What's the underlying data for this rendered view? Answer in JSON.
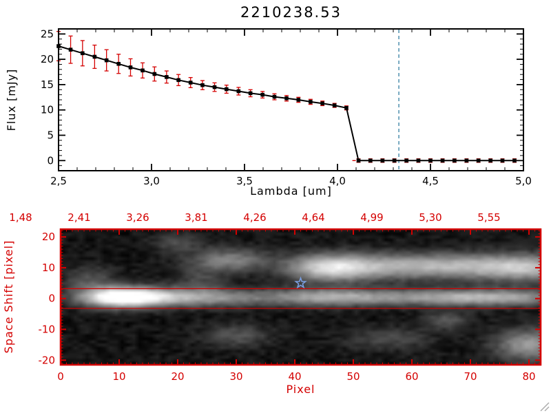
{
  "figure_title": "2210238.53",
  "chart_data": [
    {
      "type": "line",
      "title": "2210238.53",
      "xlabel": "Lambda [um]",
      "ylabel": "Flux [mJy]",
      "xlim": [
        2.5,
        5.0
      ],
      "ylim": [
        -2,
        26
      ],
      "x_ticks": [
        2.5,
        3.0,
        3.5,
        4.0,
        4.5,
        5.0
      ],
      "x_tick_labels": [
        "2,5",
        "3,0",
        "3,5",
        "4,0",
        "4,5",
        "5,0"
      ],
      "y_ticks": [
        0,
        5,
        10,
        15,
        20,
        25
      ],
      "y_tick_labels": [
        "0",
        "5",
        "10",
        "15",
        "20",
        "25"
      ],
      "line_color": "#000000",
      "error_color": "#d40000",
      "marker": "square",
      "x": [
        2.5,
        2.565,
        2.629,
        2.694,
        2.758,
        2.823,
        2.887,
        2.952,
        3.016,
        3.081,
        3.145,
        3.21,
        3.274,
        3.339,
        3.403,
        3.468,
        3.532,
        3.597,
        3.661,
        3.726,
        3.79,
        3.855,
        3.919,
        3.984,
        4.048,
        4.113,
        4.177,
        4.242,
        4.306,
        4.371,
        4.435,
        4.5,
        4.565,
        4.629,
        4.694,
        4.758,
        4.823,
        4.887,
        4.952
      ],
      "y": [
        22.6,
        21.9,
        21.2,
        20.5,
        19.8,
        19.1,
        18.4,
        17.8,
        17.1,
        16.5,
        15.9,
        15.4,
        14.9,
        14.5,
        14.1,
        13.7,
        13.3,
        13.0,
        12.6,
        12.3,
        12.0,
        11.6,
        11.3,
        10.9,
        10.4,
        0,
        0,
        0,
        0,
        0,
        0,
        0,
        0,
        0,
        0,
        0,
        0,
        0,
        0
      ],
      "yerr": [
        2.9,
        2.7,
        2.5,
        2.3,
        2.1,
        1.9,
        1.7,
        1.5,
        1.4,
        1.2,
        1.1,
        1.0,
        0.9,
        0.85,
        0.8,
        0.75,
        0.7,
        0.65,
        0.6,
        0.55,
        0.5,
        0.5,
        0.45,
        0.4,
        0.4,
        0.35,
        0.35,
        0.35,
        0.35,
        0.35,
        0.35,
        0.35,
        0.35,
        0.35,
        0.35,
        0.35,
        0.35,
        0.35,
        0.35
      ],
      "vline": {
        "x": 4.33,
        "color": "#4d8fae",
        "style": "dashed"
      },
      "zero_line": {
        "y": 0,
        "x_start": 4.08,
        "color": "#d40000",
        "style": "dashed"
      }
    },
    {
      "type": "heatmap",
      "xlabel": "Pixel",
      "ylabel": "Space Shift [pixel]",
      "axis_color": "#d40000",
      "xlim": [
        0,
        82
      ],
      "ylim": [
        -21.5,
        22.5
      ],
      "x_ticks": [
        0,
        10,
        20,
        30,
        40,
        50,
        60,
        70,
        80
      ],
      "x_tick_labels": [
        "0",
        "10",
        "20",
        "30",
        "40",
        "50",
        "60",
        "70",
        "80"
      ],
      "y_ticks": [
        -20,
        -10,
        0,
        10,
        20
      ],
      "y_tick_labels": [
        "-20",
        "-10",
        "0",
        "10",
        "20"
      ],
      "top_axis_tick_labels": [
        "1,48",
        "2,41",
        "3,26",
        "3,81",
        "4,26",
        "4,64",
        "4,99",
        "5,30",
        "5,55"
      ],
      "aperture_lines_y": [
        3.2,
        -3.2
      ],
      "star_marker": {
        "x": 41,
        "y": 5,
        "color": "#7b9fe0"
      },
      "background_level": 0.055,
      "noise_amplitude": 0.05,
      "noise_seed": 7,
      "blobs": [
        [
          10,
          0.5,
          4.5,
          2.2,
          1.1
        ],
        [
          17,
          0.5,
          5.0,
          2.0,
          0.5
        ],
        [
          28,
          0.3,
          6.0,
          1.9,
          0.38
        ],
        [
          45,
          0.5,
          7.0,
          1.9,
          0.5
        ],
        [
          62,
          0.4,
          10.0,
          1.8,
          0.42
        ],
        [
          76,
          0.4,
          8.0,
          1.8,
          0.45
        ],
        [
          46,
          10.0,
          5.0,
          3.0,
          0.7
        ],
        [
          57,
          10.5,
          8.0,
          2.8,
          0.45
        ],
        [
          70,
          10.5,
          8.0,
          2.8,
          0.42
        ],
        [
          80,
          10.0,
          6.0,
          3.0,
          0.5
        ],
        [
          29,
          12.5,
          4.5,
          2.5,
          0.4
        ],
        [
          20,
          18.0,
          3.0,
          2.0,
          0.2
        ],
        [
          5,
          6.0,
          3.0,
          3.0,
          0.22
        ],
        [
          24,
          5.0,
          3.0,
          4.0,
          0.18
        ],
        [
          30,
          -12.0,
          4.0,
          2.5,
          0.22
        ],
        [
          56,
          -13.0,
          5.0,
          2.5,
          0.18
        ],
        [
          66,
          -7.0,
          2.5,
          2.0,
          0.25
        ],
        [
          80,
          -15.0,
          4.0,
          3.5,
          0.5
        ]
      ]
    }
  ]
}
